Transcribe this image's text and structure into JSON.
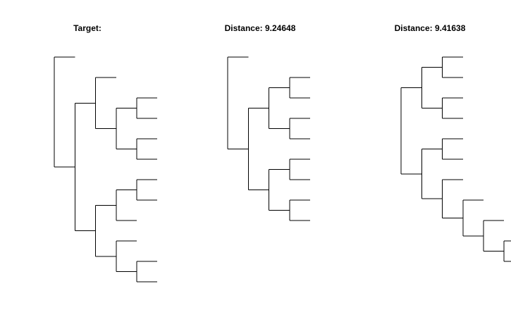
{
  "panels": [
    {
      "title": "Target:"
    },
    {
      "title": "Distance:  9.24648"
    },
    {
      "title": "Distance:  9.41638"
    }
  ],
  "trees": [
    "((),(((),(((),()),((),()))),((((),()),()),((),((),())))))",
    "((),((((),()),((),())),(((),()),((),()))))",
    "((((),()),((),())),(((),()),((),((),((),((),())))))))"
  ],
  "colors": {
    "line": "#000000",
    "background": "#ffffff"
  }
}
